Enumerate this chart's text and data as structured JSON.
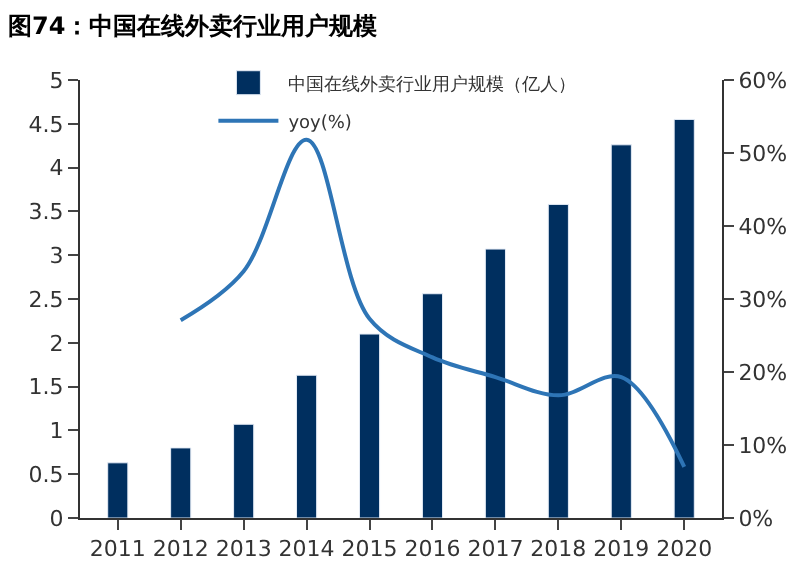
{
  "chart_data": {
    "type": "bar",
    "title": "图74：中国在线外卖行业用户规模",
    "categories": [
      "2011",
      "2012",
      "2013",
      "2014",
      "2015",
      "2016",
      "2017",
      "2018",
      "2019",
      "2020"
    ],
    "series": [
      {
        "name": "中国在线外卖行业用户规模（亿人）",
        "color": "#002f5f",
        "values": [
          0.63,
          0.8,
          1.07,
          1.63,
          2.1,
          2.56,
          3.07,
          3.58,
          4.26,
          4.55
        ]
      },
      {
        "name": "yoy(%)",
        "type": "line",
        "axis": "y2",
        "color": "#2e75b6",
        "values": [
          null,
          27.1,
          33.8,
          51.8,
          27.3,
          22,
          19.3,
          16.8,
          19.3,
          7
        ]
      }
    ],
    "ylim": [
      0,
      5
    ],
    "yticks": [
      0,
      0.5,
      1,
      1.5,
      2,
      2.5,
      3,
      3.5,
      4,
      4.5,
      5
    ],
    "y2lim": [
      0,
      60
    ],
    "y2ticks": [
      {
        "value": 0,
        "label": "0%"
      },
      {
        "value": 10,
        "label": "10%"
      },
      {
        "value": 20,
        "label": "20%"
      },
      {
        "value": 30,
        "label": "30%"
      },
      {
        "value": 40,
        "label": "40%"
      },
      {
        "value": 50,
        "label": "50%"
      },
      {
        "value": 60,
        "label": "60%"
      }
    ],
    "legend": "top",
    "grid": false,
    "marker": "none",
    "line_style": "solid"
  }
}
